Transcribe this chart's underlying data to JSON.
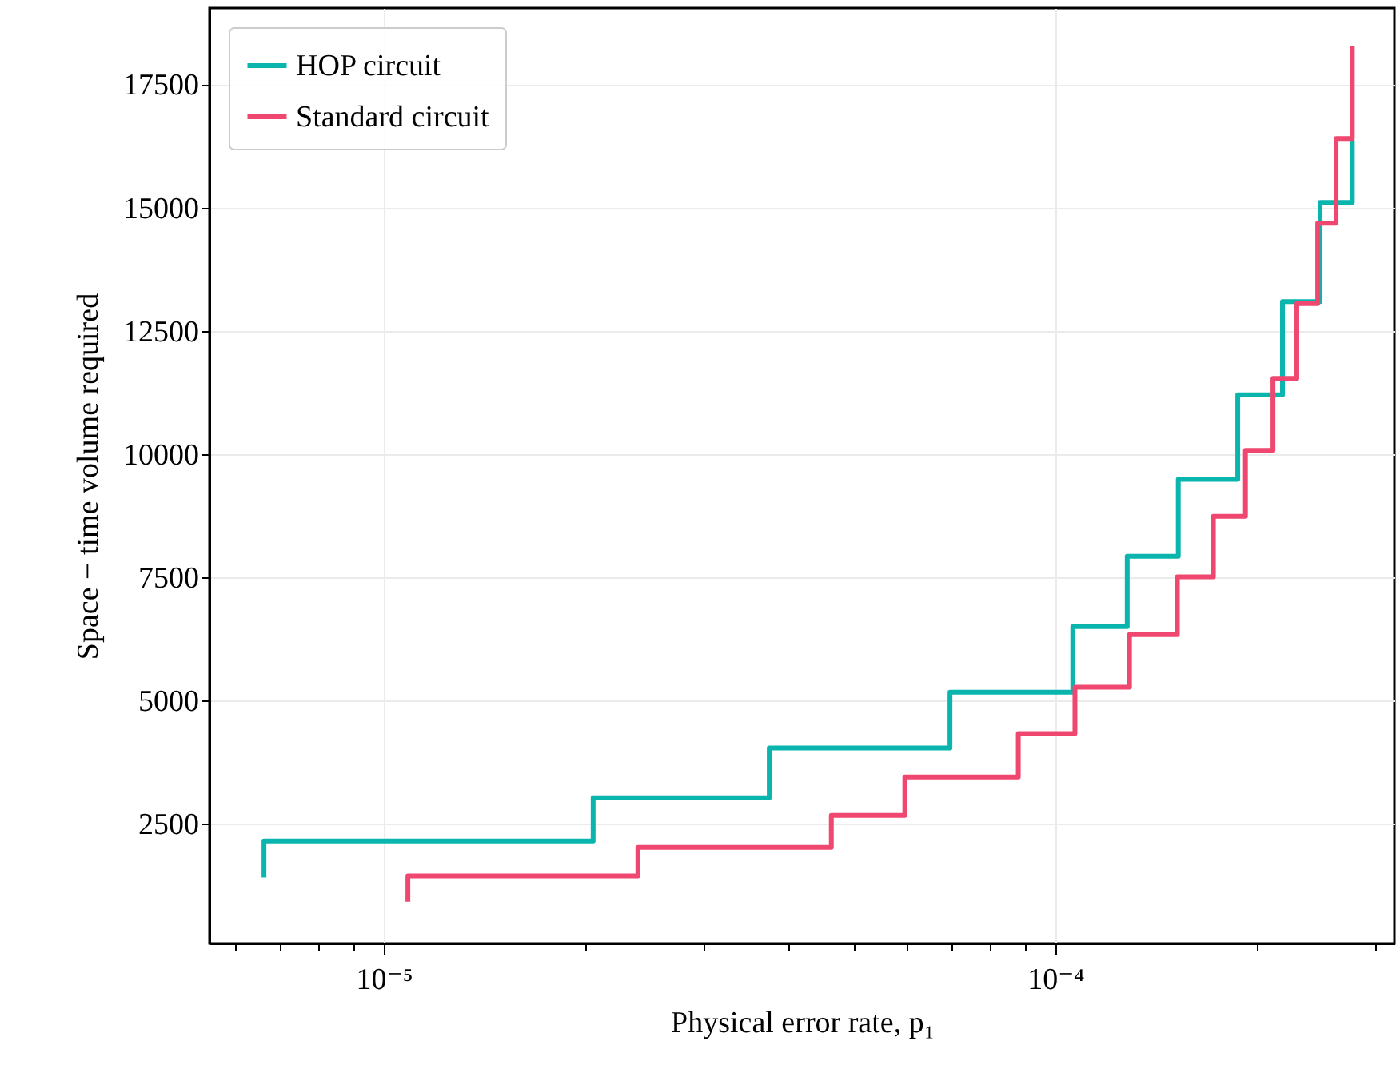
{
  "chart_data": {
    "type": "step",
    "xlabel": "Physical error rate,  p₁",
    "ylabel": "Space − time volume required",
    "log": "x",
    "grid": true,
    "legend": "top left",
    "xlim": [
      5.5e-06,
      0.00032
    ],
    "ylim": [
      60,
      19050
    ],
    "xticks": [
      {
        "value": 6e-06,
        "label": null
      },
      {
        "value": 7e-06,
        "label": null
      },
      {
        "value": 8e-06,
        "label": null
      },
      {
        "value": 9e-06,
        "label": null
      },
      {
        "value": 1e-05,
        "label": "10⁻⁵"
      },
      {
        "value": 2e-05,
        "label": null
      },
      {
        "value": 3e-05,
        "label": null
      },
      {
        "value": 4e-05,
        "label": null
      },
      {
        "value": 5e-05,
        "label": null
      },
      {
        "value": 6e-05,
        "label": null
      },
      {
        "value": 7e-05,
        "label": null
      },
      {
        "value": 8e-05,
        "label": null
      },
      {
        "value": 9e-05,
        "label": null
      },
      {
        "value": 0.0001,
        "label": "10⁻⁴"
      },
      {
        "value": 0.0002,
        "label": null
      },
      {
        "value": 0.0003,
        "label": null
      }
    ],
    "yticks": [
      2500,
      5000,
      7500,
      10000,
      12500,
      15000,
      17500
    ],
    "series": [
      {
        "name": "HOP circuit",
        "color": "#0ab5ad",
        "x": [
          6.63e-06,
          6.63e-06,
          2.05e-05,
          3.75e-05,
          6.97e-05,
          0.0001062,
          0.000128,
          0.0001525,
          0.000187,
          0.000218,
          0.000248,
          0.000277
        ],
        "values": [
          1400,
          2140,
          3020,
          4030,
          5160,
          6490,
          7920,
          9480,
          11200,
          13090,
          15100,
          16370
        ]
      },
      {
        "name": "Standard circuit",
        "color": "#ef476f",
        "x": [
          1.086e-05,
          1.086e-05,
          2.39e-05,
          4.64e-05,
          5.97e-05,
          8.81e-05,
          0.000107,
          0.000129,
          0.000152,
          0.000172,
          0.000192,
          0.000211,
          0.000229,
          0.000246,
          0.000262,
          0.000277
        ],
        "values": [
          910,
          1430,
          2010,
          2660,
          3440,
          4320,
          5260,
          6330,
          7500,
          8730,
          10070,
          11530,
          13050,
          14680,
          16400,
          18280
        ]
      }
    ]
  }
}
